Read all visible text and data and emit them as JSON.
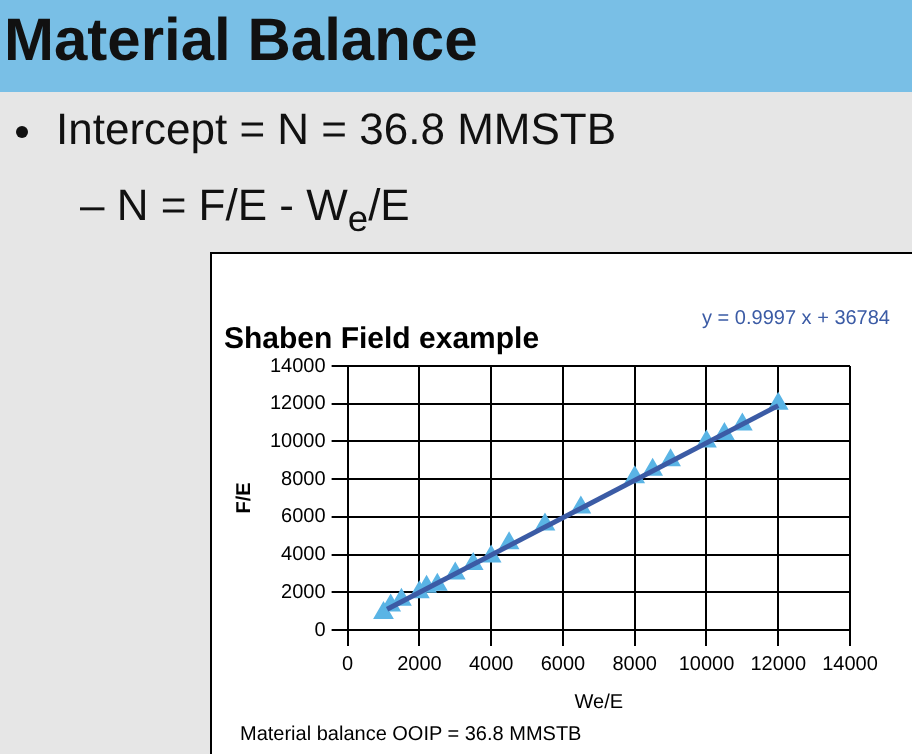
{
  "chart_data": {
    "type": "scatter",
    "title": "Material Balance",
    "subtitle": "Shaben Field example",
    "xlabel": "We/E",
    "ylabel": "F/E",
    "annotations": [
      "Intercept = N = 36.8 MMSTB",
      "– N = F/E - W$_{e}$/E",
      "y = 0.9997 x + 36784",
      "Material balance OOIP = 36.8 MMSTB"
    ],
    "xlim": [
      0,
      14000
    ],
    "xticks": [
      0,
      2000,
      4000,
      6000,
      8000,
      10000,
      12000,
      14000
    ],
    "ylim": [
      0,
      14000
    ],
    "yticks": [
      0,
      2000,
      4000,
      6000,
      8000,
      10000,
      12000,
      14000
    ],
    "grid": true,
    "legend": false,
    "marker": "triangle",
    "series": [
      {
        "type": "scatter",
        "color": "#5ab4e5",
        "x": [
          1000,
          1200,
          1500,
          2000,
          2200,
          2500,
          3000,
          3500,
          4000,
          4500,
          5500,
          6500,
          8000,
          8500,
          9000,
          10000,
          10500,
          11000,
          12000
        ],
        "values": [
          900,
          1300,
          1600,
          2000,
          2300,
          2400,
          3000,
          3500,
          3900,
          4600,
          5600,
          6500,
          8100,
          8500,
          9000,
          10000,
          10400,
          10900,
          12000
        ]
      },
      {
        "type": "line",
        "color": "#3b5ba5",
        "marker": "none",
        "x": [
          1100,
          12000
        ],
        "values": [
          1100,
          11900
        ]
      }
    ]
  }
}
